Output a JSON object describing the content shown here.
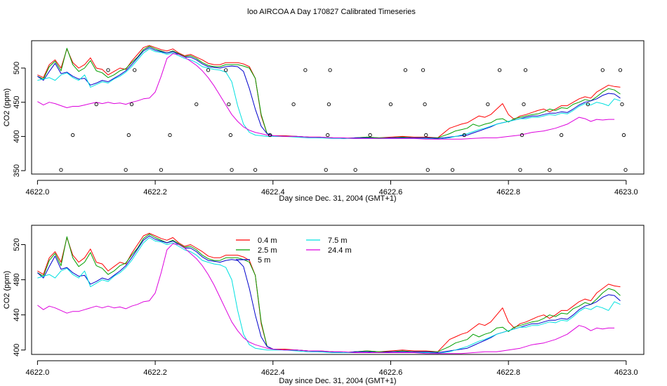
{
  "title": "loo AIRCOA A  Day 170827  Calibrated Timeseries",
  "colors": {
    "s04": "#ff0000",
    "s25": "#00a000",
    "s5": "#0000cc",
    "s75": "#00e0e0",
    "s244": "#dd00dd"
  },
  "chart_data": [
    {
      "type": "scatter",
      "xlabel": "Day since Dec. 31, 2004 (GMT+1)",
      "ylabel": "CO2 (ppm)",
      "xlim": [
        4621.99,
        4623.03
      ],
      "ylim": [
        345,
        540
      ],
      "xticks": [
        4622.0,
        4622.2,
        4622.4,
        4622.6,
        4622.8,
        4623.0
      ],
      "xtick_labels": [
        "4622.0",
        "4622.2",
        "4622.4",
        "4622.6",
        "4622.8",
        "4623.0"
      ],
      "yticks": [
        350,
        400,
        450,
        500
      ],
      "ytick_labels": [
        "350",
        "400",
        "450",
        "500"
      ],
      "points": [
        [
          4622.04,
          351
        ],
        [
          4622.06,
          402
        ],
        [
          4622.1,
          447
        ],
        [
          4622.12,
          497
        ],
        [
          4622.15,
          351
        ],
        [
          4622.155,
          402
        ],
        [
          4622.16,
          447
        ],
        [
          4622.165,
          497
        ],
        [
          4622.21,
          351
        ],
        [
          4622.225,
          402
        ],
        [
          4622.27,
          447
        ],
        [
          4622.29,
          497
        ],
        [
          4622.32,
          497
        ],
        [
          4622.325,
          447
        ],
        [
          4622.328,
          402
        ],
        [
          4622.33,
          351
        ],
        [
          4622.37,
          351
        ],
        [
          4622.395,
          402
        ],
        [
          4622.435,
          447
        ],
        [
          4622.455,
          497
        ],
        [
          4622.49,
          351
        ],
        [
          4622.493,
          402
        ],
        [
          4622.495,
          447
        ],
        [
          4622.497,
          497
        ],
        [
          4622.54,
          351
        ],
        [
          4622.565,
          402
        ],
        [
          4622.6,
          447
        ],
        [
          4622.625,
          497
        ],
        [
          4622.655,
          497
        ],
        [
          4622.658,
          447
        ],
        [
          4622.66,
          402
        ],
        [
          4622.663,
          351
        ],
        [
          4622.705,
          351
        ],
        [
          4622.725,
          402
        ],
        [
          4622.765,
          447
        ],
        [
          4622.785,
          497
        ],
        [
          4622.82,
          351
        ],
        [
          4622.823,
          402
        ],
        [
          4622.826,
          447
        ],
        [
          4622.829,
          497
        ],
        [
          4622.87,
          351
        ],
        [
          4622.89,
          402
        ],
        [
          4622.935,
          447
        ],
        [
          4622.96,
          497
        ],
        [
          4622.99,
          497
        ],
        [
          4622.993,
          447
        ],
        [
          4622.996,
          402
        ],
        [
          4622.999,
          351
        ]
      ],
      "series": []
    },
    {
      "type": "line",
      "xlabel": "Day since Dec. 31, 2004 (GMT+1)",
      "ylabel": "CO2 (ppm)",
      "xlim": [
        4621.99,
        4623.03
      ],
      "ylim": [
        395,
        542
      ],
      "xticks": [
        4622.0,
        4622.2,
        4622.4,
        4622.6,
        4622.8,
        4623.0
      ],
      "xtick_labels": [
        "4622.0",
        "4622.2",
        "4622.4",
        "4622.6",
        "4622.8",
        "4623.0"
      ],
      "yticks": [
        400,
        440,
        480,
        520
      ],
      "ytick_labels": [
        "400",
        "440",
        "480",
        "520"
      ],
      "legend": {
        "position": "top-center",
        "entries": [
          {
            "label": "0.4 m",
            "color": "#ff0000"
          },
          {
            "label": "2.5 m",
            "color": "#00a000"
          },
          {
            "label": "5 m",
            "color": "#0000cc"
          },
          {
            "label": "7.5 m",
            "color": "#00e0e0"
          },
          {
            "label": "24.4 m",
            "color": "#dd00dd"
          }
        ]
      },
      "series": []
    }
  ],
  "series_data": [
    {
      "name": "0.4 m",
      "color": "#ff0000",
      "x": [
        4622.0,
        4622.01,
        4622.02,
        4622.03,
        4622.04,
        4622.05,
        4622.06,
        4622.07,
        4622.08,
        4622.09,
        4622.1,
        4622.11,
        4622.12,
        4622.13,
        4622.14,
        4622.15,
        4622.16,
        4622.17,
        4622.18,
        4622.19,
        4622.2,
        4622.21,
        4622.22,
        4622.23,
        4622.24,
        4622.25,
        4622.26,
        4622.27,
        4622.28,
        4622.29,
        4622.3,
        4622.31,
        4622.32,
        4622.33,
        4622.34,
        4622.35,
        4622.36,
        4622.37,
        4622.38,
        4622.39,
        4622.4,
        4622.42,
        4622.44,
        4622.46,
        4622.48,
        4622.5,
        4622.52,
        4622.54,
        4622.56,
        4622.58,
        4622.6,
        4622.62,
        4622.64,
        4622.66,
        4622.68,
        4622.7,
        4622.71,
        4622.72,
        4622.73,
        4622.74,
        4622.75,
        4622.76,
        4622.77,
        4622.78,
        4622.79,
        4622.8,
        4622.81,
        4622.82,
        4622.83,
        4622.84,
        4622.85,
        4622.86,
        4622.87,
        4622.88,
        4622.89,
        4622.9,
        4622.91,
        4622.92,
        4622.93,
        4622.94,
        4622.95,
        4622.96,
        4622.97,
        4622.98,
        4622.99
      ],
      "y": [
        490,
        486,
        505,
        512,
        500,
        528,
        508,
        500,
        505,
        515,
        500,
        498,
        490,
        495,
        500,
        498,
        510,
        520,
        530,
        533,
        530,
        527,
        525,
        528,
        522,
        518,
        520,
        516,
        512,
        507,
        505,
        505,
        508,
        508,
        508,
        506,
        502,
        485,
        430,
        404,
        401,
        401,
        400,
        399,
        399,
        398,
        397,
        398,
        399,
        398,
        399,
        400,
        399,
        399,
        398,
        412,
        415,
        418,
        420,
        425,
        430,
        428,
        432,
        440,
        448,
        432,
        425,
        430,
        432,
        435,
        438,
        440,
        436,
        440,
        445,
        445,
        450,
        455,
        458,
        456,
        465,
        470,
        475,
        473,
        472
      ]
    },
    {
      "name": "2.5 m",
      "color": "#00a000",
      "x": [
        4622.0,
        4622.01,
        4622.02,
        4622.03,
        4622.04,
        4622.05,
        4622.06,
        4622.07,
        4622.08,
        4622.09,
        4622.1,
        4622.11,
        4622.12,
        4622.13,
        4622.14,
        4622.15,
        4622.16,
        4622.17,
        4622.18,
        4622.19,
        4622.2,
        4622.21,
        4622.22,
        4622.23,
        4622.24,
        4622.25,
        4622.26,
        4622.27,
        4622.28,
        4622.29,
        4622.3,
        4622.31,
        4622.32,
        4622.33,
        4622.34,
        4622.35,
        4622.36,
        4622.37,
        4622.38,
        4622.39,
        4622.4,
        4622.42,
        4622.44,
        4622.46,
        4622.48,
        4622.5,
        4622.52,
        4622.54,
        4622.56,
        4622.58,
        4622.6,
        4622.62,
        4622.64,
        4622.66,
        4622.68,
        4622.7,
        4622.71,
        4622.72,
        4622.73,
        4622.74,
        4622.75,
        4622.76,
        4622.77,
        4622.78,
        4622.79,
        4622.8,
        4622.81,
        4622.82,
        4622.83,
        4622.84,
        4622.85,
        4622.86,
        4622.87,
        4622.88,
        4622.89,
        4622.9,
        4622.91,
        4622.92,
        4622.93,
        4622.94,
        4622.95,
        4622.96,
        4622.97,
        4622.98,
        4622.99
      ],
      "y": [
        488,
        484,
        502,
        510,
        496,
        529,
        505,
        495,
        500,
        511,
        496,
        493,
        486,
        490,
        496,
        499,
        508,
        516,
        527,
        532,
        528,
        525,
        522,
        525,
        521,
        517,
        518,
        514,
        508,
        504,
        502,
        502,
        505,
        505,
        505,
        503,
        500,
        485,
        432,
        404,
        401,
        400,
        400,
        399,
        398,
        398,
        397,
        398,
        399,
        398,
        398,
        399,
        398,
        398,
        398,
        404,
        408,
        410,
        412,
        418,
        415,
        418,
        420,
        425,
        426,
        421,
        426,
        428,
        430,
        432,
        433,
        436,
        440,
        438,
        442,
        441,
        447,
        450,
        454,
        452,
        458,
        465,
        470,
        468,
        462
      ]
    },
    {
      "name": "5 m",
      "color": "#0000cc",
      "x": [
        4622.0,
        4622.01,
        4622.02,
        4622.03,
        4622.04,
        4622.05,
        4622.06,
        4622.07,
        4622.08,
        4622.09,
        4622.1,
        4622.11,
        4622.12,
        4622.13,
        4622.14,
        4622.15,
        4622.16,
        4622.17,
        4622.18,
        4622.19,
        4622.2,
        4622.21,
        4622.22,
        4622.23,
        4622.24,
        4622.25,
        4622.26,
        4622.27,
        4622.28,
        4622.29,
        4622.3,
        4622.31,
        4622.32,
        4622.33,
        4622.34,
        4622.35,
        4622.36,
        4622.37,
        4622.38,
        4622.39,
        4622.4,
        4622.42,
        4622.44,
        4622.46,
        4622.48,
        4622.5,
        4622.52,
        4622.54,
        4622.56,
        4622.58,
        4622.6,
        4622.62,
        4622.64,
        4622.66,
        4622.68,
        4622.7,
        4622.71,
        4622.72,
        4622.73,
        4622.74,
        4622.75,
        4622.76,
        4622.77,
        4622.78,
        4622.79,
        4622.8,
        4622.81,
        4622.82,
        4622.83,
        4622.84,
        4622.85,
        4622.86,
        4622.87,
        4622.88,
        4622.89,
        4622.9,
        4622.91,
        4622.92,
        4622.93,
        4622.94,
        4622.95,
        4622.96,
        4622.97,
        4622.98,
        4622.99
      ],
      "y": [
        488,
        482,
        495,
        507,
        492,
        494,
        488,
        484,
        485,
        475,
        478,
        482,
        480,
        485,
        490,
        496,
        505,
        515,
        525,
        530,
        526,
        524,
        522,
        524,
        520,
        516,
        516,
        512,
        506,
        502,
        501,
        500,
        502,
        503,
        502,
        495,
        470,
        440,
        415,
        404,
        401,
        400,
        400,
        399,
        398,
        398,
        397,
        398,
        398,
        397,
        398,
        398,
        398,
        398,
        397,
        399,
        400,
        401,
        402,
        405,
        408,
        411,
        414,
        418,
        420,
        422,
        424,
        426,
        428,
        430,
        430,
        432,
        434,
        434,
        436,
        435,
        440,
        446,
        450,
        452,
        455,
        460,
        463,
        462,
        456
      ]
    },
    {
      "name": "7.5 m",
      "color": "#00e0e0",
      "x": [
        4622.0,
        4622.01,
        4622.02,
        4622.03,
        4622.04,
        4622.05,
        4622.06,
        4622.07,
        4622.08,
        4622.09,
        4622.1,
        4622.11,
        4622.12,
        4622.13,
        4622.14,
        4622.15,
        4622.16,
        4622.17,
        4622.18,
        4622.19,
        4622.2,
        4622.21,
        4622.22,
        4622.23,
        4622.24,
        4622.25,
        4622.26,
        4622.27,
        4622.28,
        4622.29,
        4622.3,
        4622.31,
        4622.32,
        4622.33,
        4622.34,
        4622.35,
        4622.36,
        4622.37,
        4622.38,
        4622.39,
        4622.4,
        4622.42,
        4622.44,
        4622.46,
        4622.48,
        4622.5,
        4622.52,
        4622.54,
        4622.56,
        4622.58,
        4622.6,
        4622.62,
        4622.64,
        4622.66,
        4622.68,
        4622.7,
        4622.71,
        4622.72,
        4622.73,
        4622.74,
        4622.75,
        4622.76,
        4622.77,
        4622.78,
        4622.79,
        4622.8,
        4622.81,
        4622.82,
        4622.83,
        4622.84,
        4622.85,
        4622.86,
        4622.87,
        4622.88,
        4622.89,
        4622.9,
        4622.91,
        4622.92,
        4622.93,
        4622.94,
        4622.95,
        4622.96,
        4622.97,
        4622.98,
        4622.99
      ],
      "y": [
        482,
        484,
        486,
        482,
        490,
        493,
        486,
        482,
        490,
        472,
        476,
        480,
        478,
        484,
        488,
        494,
        502,
        512,
        522,
        528,
        524,
        523,
        520,
        522,
        518,
        514,
        512,
        508,
        502,
        500,
        498,
        497,
        494,
        480,
        445,
        418,
        406,
        402,
        401,
        400,
        400,
        400,
        399,
        398,
        398,
        397,
        397,
        397,
        397,
        397,
        397,
        397,
        397,
        397,
        396,
        398,
        400,
        402,
        404,
        407,
        410,
        412,
        415,
        418,
        420,
        422,
        424,
        426,
        426,
        428,
        428,
        430,
        432,
        431,
        434,
        433,
        438,
        444,
        448,
        446,
        450,
        448,
        445,
        455,
        452
      ]
    },
    {
      "name": "24.4 m",
      "color": "#dd00dd",
      "x": [
        4622.0,
        4622.01,
        4622.02,
        4622.03,
        4622.04,
        4622.05,
        4622.06,
        4622.07,
        4622.08,
        4622.09,
        4622.1,
        4622.11,
        4622.12,
        4622.13,
        4622.14,
        4622.15,
        4622.16,
        4622.17,
        4622.18,
        4622.19,
        4622.2,
        4622.21,
        4622.22,
        4622.23,
        4622.24,
        4622.25,
        4622.26,
        4622.27,
        4622.28,
        4622.29,
        4622.3,
        4622.31,
        4622.32,
        4622.33,
        4622.34,
        4622.35,
        4622.36,
        4622.37,
        4622.38,
        4622.39,
        4622.4,
        4622.42,
        4622.44,
        4622.46,
        4622.48,
        4622.5,
        4622.52,
        4622.54,
        4622.56,
        4622.58,
        4622.6,
        4622.62,
        4622.64,
        4622.66,
        4622.68,
        4622.7,
        4622.72,
        4622.74,
        4622.76,
        4622.78,
        4622.8,
        4622.82,
        4622.84,
        4622.86,
        4622.88,
        4622.9,
        4622.92,
        4622.93,
        4622.94,
        4622.95,
        4622.96,
        4622.97,
        4622.98
      ],
      "y": [
        451,
        446,
        450,
        448,
        445,
        442,
        444,
        444,
        446,
        448,
        450,
        448,
        450,
        448,
        449,
        447,
        450,
        452,
        455,
        456,
        465,
        488,
        514,
        521,
        520,
        516,
        510,
        504,
        496,
        486,
        474,
        460,
        446,
        432,
        422,
        414,
        409,
        406,
        404,
        402,
        401,
        400,
        400,
        399,
        399,
        398,
        398,
        397,
        397,
        397,
        397,
        397,
        397,
        396,
        396,
        396,
        396,
        397,
        398,
        398,
        400,
        402,
        406,
        408,
        412,
        418,
        428,
        426,
        422,
        425,
        424,
        425,
        425
      ]
    }
  ]
}
